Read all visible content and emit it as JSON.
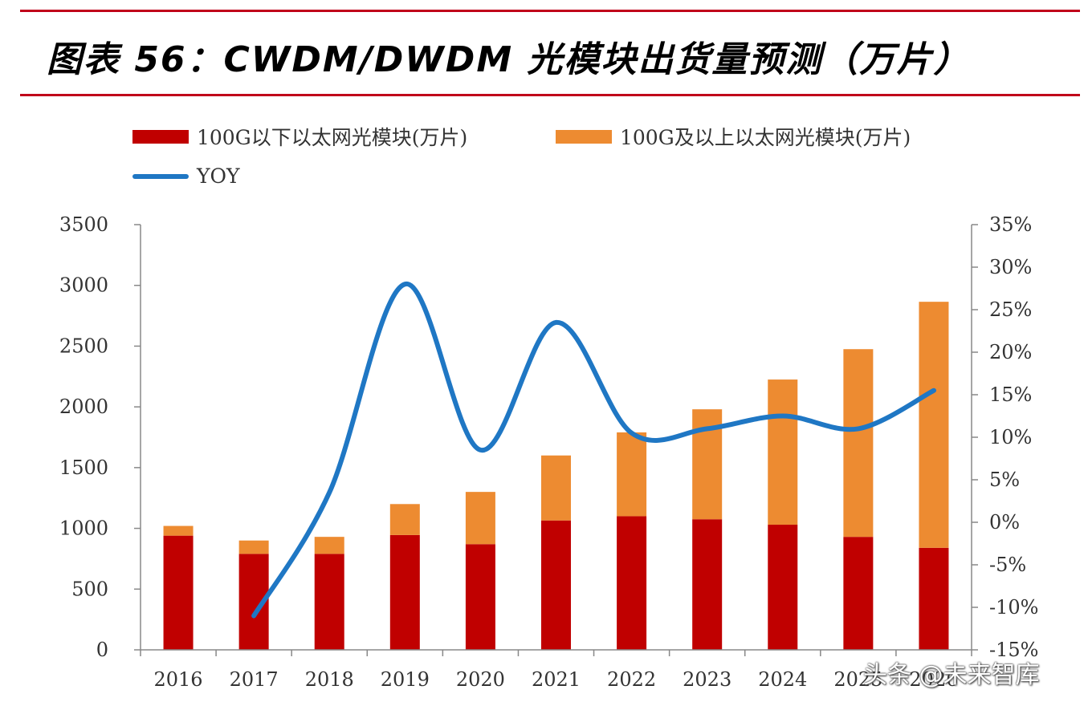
{
  "chart_data": {
    "type": "bar",
    "title": "图表 56：CWDM/DWDM 光模块出货量预测（万片）",
    "categories": [
      "2016",
      "2017",
      "2018",
      "2019",
      "2020",
      "2021",
      "2022",
      "2023",
      "2024",
      "2025",
      "2026"
    ],
    "series": [
      {
        "name": "100G以下以太网光模块(万片)",
        "kind": "bar",
        "stack": "total",
        "axis": "left",
        "color": "#c00000",
        "values": [
          940,
          790,
          790,
          945,
          870,
          1065,
          1100,
          1075,
          1030,
          930,
          840
        ]
      },
      {
        "name": "100G及以上以太网光模块(万片)",
        "kind": "bar",
        "stack": "total",
        "axis": "left",
        "color": "#ed8b31",
        "values": [
          80,
          110,
          140,
          255,
          430,
          535,
          690,
          905,
          1195,
          1545,
          2025
        ]
      },
      {
        "name": "YOY",
        "kind": "line",
        "axis": "right",
        "color": "#1f77c4",
        "values": [
          null,
          -11,
          3.5,
          28,
          8.5,
          23.5,
          10.5,
          11,
          12.5,
          11,
          15.5
        ]
      }
    ],
    "y_left": {
      "min": 0,
      "max": 3500,
      "step": 500,
      "ticks": [
        "0",
        "500",
        "1000",
        "1500",
        "2000",
        "2500",
        "3000",
        "3500"
      ]
    },
    "y_right": {
      "min": -15,
      "max": 35,
      "step": 5,
      "ticks": [
        "-15%",
        "-10%",
        "-5%",
        "0%",
        "5%",
        "10%",
        "15%",
        "20%",
        "25%",
        "30%",
        "35%"
      ]
    },
    "legend_position": "top-left",
    "grid": false
  },
  "watermark": "头条 @未来智库"
}
